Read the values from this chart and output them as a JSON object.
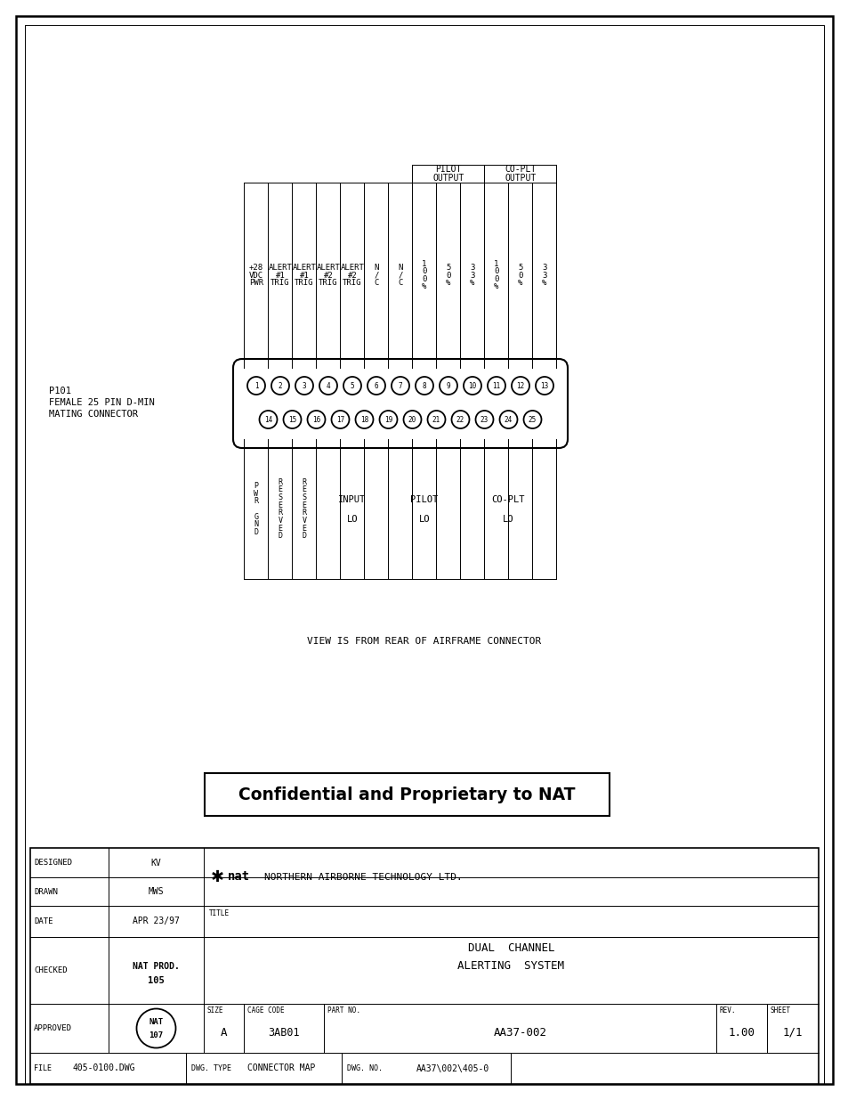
{
  "drawing_bg": "#ffffff",
  "title": "Confidential and Proprietary to NAT",
  "view_note": "VIEW IS FROM REAR OF AIRFRAME CONNECTOR",
  "top_row": [
    1,
    2,
    3,
    4,
    5,
    6,
    7,
    8,
    9,
    10,
    11,
    12,
    13
  ],
  "bottom_row": [
    14,
    15,
    16,
    17,
    18,
    19,
    20,
    21,
    22,
    23,
    24,
    25
  ],
  "col1_label": "+28\nVDC\nPWR",
  "col2_label": "ALERT\n#1\nTRIG",
  "col3_label": "ALERT\n#1\nTRIG",
  "col4_label": "ALERT\n#2\nTRIG",
  "col5_label": "ALERT\n#2\nTRIG",
  "col6_label": "N\n/\nC",
  "col7_label": "N\n/\nC",
  "col8_label": "1\n0\n0\n%",
  "col9_label": "5\n0\n%",
  "col10_label": "3\n3\n%",
  "col11_label": "1\n0\n0\n%",
  "col12_label": "5\n0\n%",
  "col13_label": "3\n3\n%",
  "bottom_col1_label": "P\nW\nR\n\nG\nN\nD",
  "bottom_col2_label": "R\nE\nS\nE\nR\nV\nE\nD",
  "bottom_col3_label": "R\nE\nS\nE\nR\nV\nE\nD",
  "bottom_col4_label": "INPUT\nLO",
  "bottom_col7_label": "PILOT\nLO",
  "bottom_col10_label": "CO-PLT\nLO",
  "connector_label": "P101\nFEMALE 25 PIN D-MIN\nMATING CONNECTOR",
  "designed": "KV",
  "drawn": "MWS",
  "date": "APR 23/97",
  "checked": "NAT PROD.\n105",
  "nat_circle": "NAT\n107",
  "company": "NORTHERN AIRBORNE TECHNOLOGY LTD.",
  "title_line1": "DUAL  CHANNEL",
  "title_line2": "ALERTING  SYSTEM",
  "size": "A",
  "cage_code": "3AB01",
  "part_no": "AA37-002",
  "rev": "1.00",
  "sheet": "1/1",
  "file": "405-0100.DWG",
  "dwg_type": "CONNECTOR MAP",
  "dwg_no": "AA37\\002\\405-0"
}
